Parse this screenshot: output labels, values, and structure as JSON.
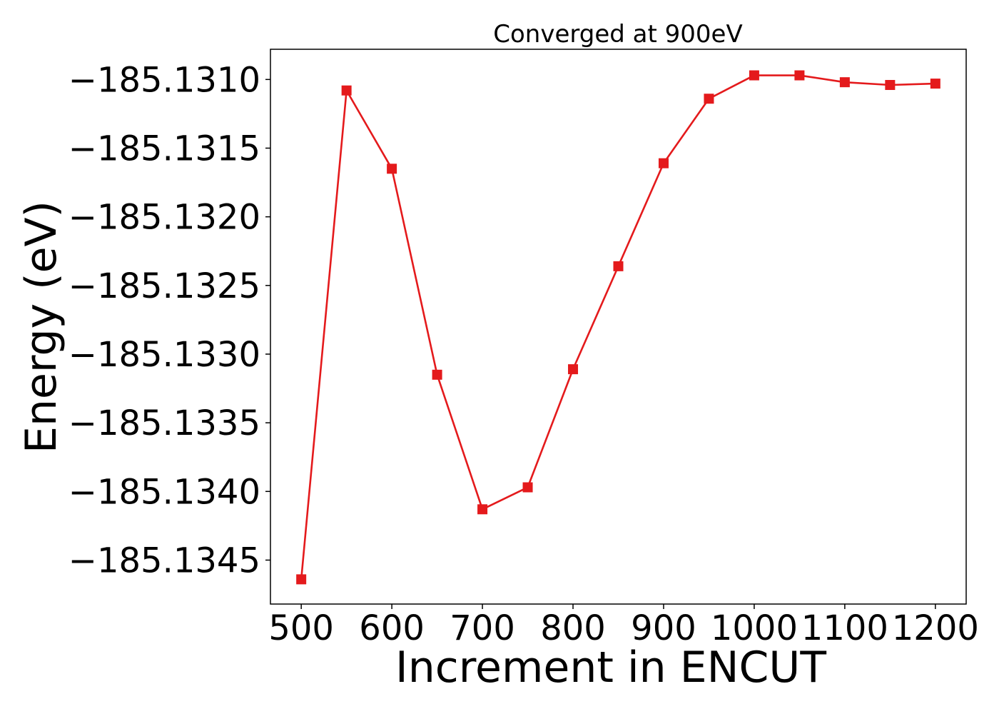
{
  "chart_data": {
    "type": "line",
    "title": "Converged at 900eV",
    "xlabel": "Increment in ENCUT",
    "ylabel": "Energy (eV)",
    "xlim": [
      466,
      1234
    ],
    "ylim": [
      -185.13482,
      -185.13078
    ],
    "x_ticks": [
      500,
      600,
      700,
      800,
      900,
      1000,
      1100,
      1200
    ],
    "x_tick_labels": [
      "500",
      "600",
      "700",
      "800",
      "900",
      "1000",
      "1100",
      "1200"
    ],
    "y_ticks": [
      -185.131,
      -185.1315,
      -185.132,
      -185.1325,
      -185.133,
      -185.1335,
      -185.134,
      -185.1345
    ],
    "y_tick_labels": [
      "−185.1310",
      "−185.1315",
      "−185.1320",
      "−185.1325",
      "−185.1330",
      "−185.1335",
      "−185.1340",
      "−185.1345"
    ],
    "grid": false,
    "series": [
      {
        "color": "#e41a1c",
        "marker": "square",
        "x": [
          500,
          550,
          600,
          650,
          700,
          750,
          800,
          850,
          900,
          950,
          1000,
          1050,
          1100,
          1150,
          1200
        ],
        "y": [
          -185.13464,
          -185.13108,
          -185.13165,
          -185.13315,
          -185.13413,
          -185.13397,
          -185.13311,
          -185.13236,
          -185.13161,
          -185.13114,
          -185.13097,
          -185.13097,
          -185.13102,
          -185.13104,
          -185.13103
        ]
      }
    ]
  }
}
